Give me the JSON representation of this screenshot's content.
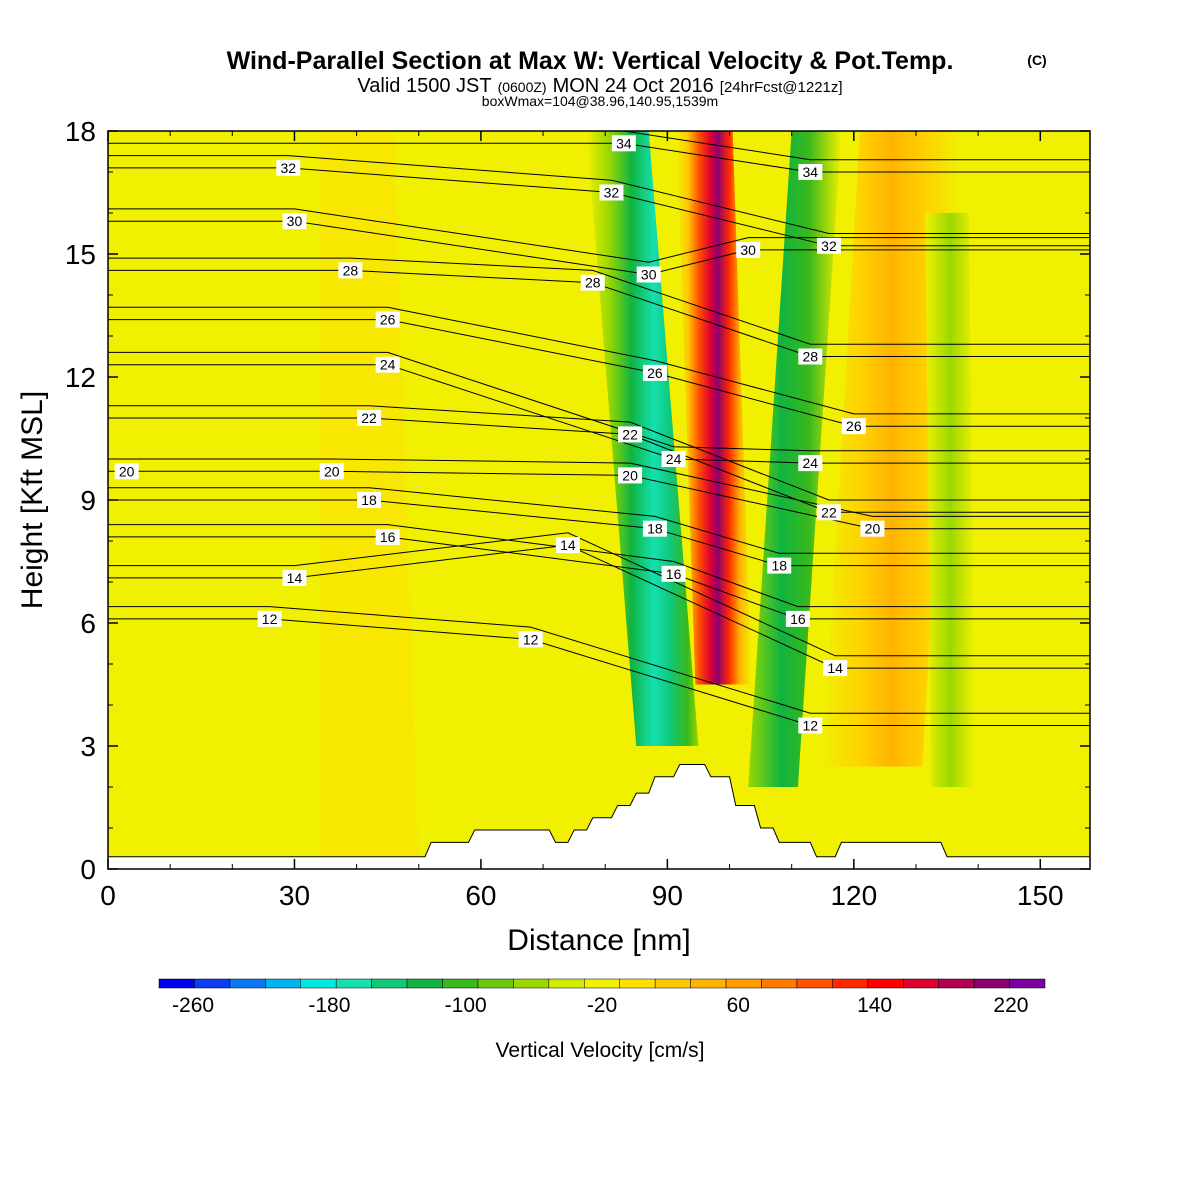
{
  "title": {
    "main": "Wind-Parallel Section at Max W: Vertical Velocity & Pot.Temp.",
    "main_tag": "(C)",
    "valid_prefix": "Valid 1500 JST",
    "valid_zulu": "(0600Z)",
    "valid_date": "MON 24 Oct 2016",
    "valid_fcst": "[24hrFcst@1221z]",
    "box_info": "boxWmax=104@38.96,140.95,1539m"
  },
  "colorbar": {
    "label": "Vertical Velocity [cm/s]",
    "tick_labels": [
      "-260",
      "-180",
      "-100",
      "-20",
      "60",
      "140",
      "220"
    ],
    "colors": [
      "#0000ee",
      "#0a3ef0",
      "#0a78f0",
      "#00b4f0",
      "#00e8e0",
      "#14e0b0",
      "#10c878",
      "#10b440",
      "#38b81c",
      "#6cc80c",
      "#9ad800",
      "#d2ee00",
      "#f0f000",
      "#ffe000",
      "#ffc800",
      "#ffb400",
      "#ff9c00",
      "#ff7800",
      "#ff5000",
      "#ff2800",
      "#ff0000",
      "#e00030",
      "#b40050",
      "#8c0070",
      "#7a00a0"
    ]
  },
  "chart_data": {
    "type": "heatmap",
    "xlabel": "Distance [nm]",
    "ylabel": "Height [Kft MSL]",
    "xlim": [
      0,
      158
    ],
    "ylim": [
      0,
      18
    ],
    "x_ticks": [
      "0",
      "30",
      "60",
      "90",
      "120",
      "150"
    ],
    "y_ticks": [
      "0",
      "3",
      "6",
      "9",
      "12",
      "15",
      "18"
    ],
    "colorbar_range": [
      -280,
      240
    ],
    "colorbar_step": 20,
    "vertical_velocity_features": [
      {
        "name": "updraft core",
        "x": 99,
        "z_range": [
          4.5,
          18
        ],
        "w_max": 240
      },
      {
        "name": "downdraft west",
        "x": 90,
        "z_range": [
          3,
          18
        ],
        "w_min": -180
      },
      {
        "name": "downdraft east",
        "x": 107,
        "z_range": [
          2,
          18
        ],
        "w_min": -80
      },
      {
        "name": "updraft east",
        "x": 123,
        "z_range": [
          2.5,
          18
        ],
        "w_max": 60
      },
      {
        "name": "downdraft far east",
        "x": 136,
        "z_range": [
          2,
          16
        ],
        "w_min": -40
      }
    ],
    "terrain": [
      [
        0,
        0.3
      ],
      [
        44,
        0.3
      ],
      [
        51,
        0.3
      ],
      [
        52,
        0.65
      ],
      [
        58,
        0.65
      ],
      [
        59,
        0.95
      ],
      [
        71,
        0.95
      ],
      [
        72,
        0.65
      ],
      [
        74,
        0.65
      ],
      [
        75,
        0.95
      ],
      [
        77,
        0.95
      ],
      [
        78,
        1.25
      ],
      [
        81,
        1.25
      ],
      [
        82,
        1.55
      ],
      [
        84,
        1.55
      ],
      [
        85,
        1.85
      ],
      [
        87,
        1.85
      ],
      [
        88,
        2.25
      ],
      [
        91,
        2.25
      ],
      [
        92,
        2.55
      ],
      [
        96,
        2.55
      ],
      [
        97,
        2.25
      ],
      [
        100,
        2.25
      ],
      [
        101,
        1.55
      ],
      [
        104,
        1.55
      ],
      [
        105,
        1.0
      ],
      [
        107,
        1.0
      ],
      [
        108,
        0.65
      ],
      [
        113,
        0.65
      ],
      [
        114,
        0.3
      ],
      [
        117,
        0.3
      ],
      [
        118,
        0.65
      ],
      [
        134,
        0.65
      ],
      [
        135,
        0.3
      ],
      [
        158,
        0.3
      ]
    ],
    "theta_contour_labels": [
      {
        "text": "12",
        "x": 26,
        "z": 6.1
      },
      {
        "text": "12",
        "x": 68,
        "z": 5.6
      },
      {
        "text": "12",
        "x": 113,
        "z": 3.5
      },
      {
        "text": "14",
        "x": 30,
        "z": 7.1
      },
      {
        "text": "14",
        "x": 74,
        "z": 7.9
      },
      {
        "text": "14",
        "x": 117,
        "z": 4.9
      },
      {
        "text": "16",
        "x": 45,
        "z": 8.1
      },
      {
        "text": "16",
        "x": 91,
        "z": 7.2
      },
      {
        "text": "16",
        "x": 111,
        "z": 6.1
      },
      {
        "text": "18",
        "x": 42,
        "z": 9.0
      },
      {
        "text": "18",
        "x": 88,
        "z": 8.3
      },
      {
        "text": "18",
        "x": 108,
        "z": 7.4
      },
      {
        "text": "20",
        "x": 3,
        "z": 9.7
      },
      {
        "text": "20",
        "x": 36,
        "z": 9.7
      },
      {
        "text": "20",
        "x": 84,
        "z": 9.6
      },
      {
        "text": "20",
        "x": 123,
        "z": 8.3
      },
      {
        "text": "22",
        "x": 42,
        "z": 11.0
      },
      {
        "text": "22",
        "x": 84,
        "z": 10.6
      },
      {
        "text": "22",
        "x": 116,
        "z": 8.7
      },
      {
        "text": "24",
        "x": 45,
        "z": 12.3
      },
      {
        "text": "24",
        "x": 91,
        "z": 10.0
      },
      {
        "text": "24",
        "x": 113,
        "z": 9.9
      },
      {
        "text": "26",
        "x": 45,
        "z": 13.4
      },
      {
        "text": "26",
        "x": 88,
        "z": 12.1
      },
      {
        "text": "26",
        "x": 120,
        "z": 10.8
      },
      {
        "text": "28",
        "x": 39,
        "z": 14.6
      },
      {
        "text": "28",
        "x": 78,
        "z": 14.3
      },
      {
        "text": "28",
        "x": 113,
        "z": 12.5
      },
      {
        "text": "30",
        "x": 30,
        "z": 15.8
      },
      {
        "text": "30",
        "x": 87,
        "z": 14.5
      },
      {
        "text": "30",
        "x": 103,
        "z": 15.1
      },
      {
        "text": "32",
        "x": 29,
        "z": 17.1
      },
      {
        "text": "32",
        "x": 81,
        "z": 16.5
      },
      {
        "text": "32",
        "x": 116,
        "z": 15.2
      },
      {
        "text": "34",
        "x": 83,
        "z": 17.7
      },
      {
        "text": "34",
        "x": 113,
        "z": 17.0
      }
    ]
  }
}
